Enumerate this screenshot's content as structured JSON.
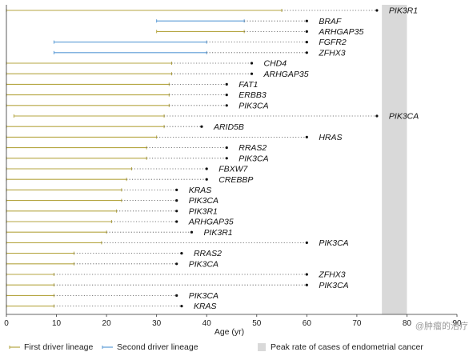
{
  "colors": {
    "first_lineage": "#b5a642",
    "second_lineage": "#5b9bd5",
    "peak_band": "#d9d9d9",
    "dotted": "#555555",
    "text": "#111111"
  },
  "watermark": "@肿瘤的治疗",
  "chart_data": {
    "type": "timeline",
    "xlabel": "Age (yr)",
    "xlim": [
      0,
      90
    ],
    "xticks": [
      0,
      10,
      20,
      30,
      40,
      50,
      60,
      70,
      80,
      90
    ],
    "peak_band": {
      "label": "Peak rate of cases of endometrial cancer",
      "from": 75,
      "to": 80
    },
    "legend": [
      {
        "key": "first",
        "label": "First driver lineage"
      },
      {
        "key": "second",
        "label": "Second driver lineage"
      },
      {
        "key": "peak",
        "label": "Peak rate of cases of endometrial cancer"
      }
    ],
    "rows": [
      {
        "start": 0,
        "end": 55,
        "lineage": "first",
        "driver_age": 74,
        "gene": "PIK3R1"
      },
      {
        "start": 30,
        "end": 47.5,
        "lineage": "second",
        "driver_age": 60,
        "gene": "BRAF"
      },
      {
        "start": 30,
        "end": 47.5,
        "lineage": "first",
        "driver_age": 60,
        "gene": "ARHGAP35"
      },
      {
        "start": 9.5,
        "end": 40,
        "lineage": "second",
        "driver_age": 60,
        "gene": "FGFR2"
      },
      {
        "start": 9.5,
        "end": 40,
        "lineage": "second",
        "driver_age": 60,
        "gene": "ZFHX3"
      },
      {
        "start": 0,
        "end": 33,
        "lineage": "first",
        "driver_age": 49,
        "gene": "CHD4"
      },
      {
        "start": 0,
        "end": 33,
        "lineage": "first",
        "driver_age": 49,
        "gene": "ARHGAP35"
      },
      {
        "start": 0,
        "end": 32.5,
        "lineage": "first",
        "driver_age": 44,
        "gene": "FAT1"
      },
      {
        "start": 0,
        "end": 32.5,
        "lineage": "first",
        "driver_age": 44,
        "gene": "ERBB3"
      },
      {
        "start": 0,
        "end": 32.5,
        "lineage": "first",
        "driver_age": 44,
        "gene": "PIK3CA"
      },
      {
        "start": 1.5,
        "end": 31.5,
        "lineage": "first",
        "driver_age": 74,
        "gene": "PIK3CA"
      },
      {
        "start": 0,
        "end": 31.5,
        "lineage": "first",
        "driver_age": 39,
        "gene": "ARID5B"
      },
      {
        "start": 0,
        "end": 30,
        "lineage": "first",
        "driver_age": 60,
        "gene": "HRAS"
      },
      {
        "start": 0,
        "end": 28,
        "lineage": "first",
        "driver_age": 44,
        "gene": "RRAS2"
      },
      {
        "start": 0,
        "end": 28,
        "lineage": "first",
        "driver_age": 44,
        "gene": "PIK3CA"
      },
      {
        "start": 0,
        "end": 25,
        "lineage": "first",
        "driver_age": 40,
        "gene": "FBXW7"
      },
      {
        "start": 0,
        "end": 24,
        "lineage": "first",
        "driver_age": 40,
        "gene": "CREBBP"
      },
      {
        "start": 0,
        "end": 23,
        "lineage": "first",
        "driver_age": 34,
        "gene": "KRAS"
      },
      {
        "start": 0,
        "end": 23,
        "lineage": "first",
        "driver_age": 34,
        "gene": "PIK3CA"
      },
      {
        "start": 0,
        "end": 22,
        "lineage": "first",
        "driver_age": 34,
        "gene": "PIK3R1"
      },
      {
        "start": 0,
        "end": 21,
        "lineage": "first",
        "driver_age": 34,
        "gene": "ARHGAP35"
      },
      {
        "start": 0,
        "end": 20,
        "lineage": "first",
        "driver_age": 37,
        "gene": "PIK3R1"
      },
      {
        "start": 0,
        "end": 19,
        "lineage": "first",
        "driver_age": 60,
        "gene": "PIK3CA"
      },
      {
        "start": 0,
        "end": 13.5,
        "lineage": "first",
        "driver_age": 35,
        "gene": "RRAS2"
      },
      {
        "start": 0,
        "end": 13.5,
        "lineage": "first",
        "driver_age": 34,
        "gene": "PIK3CA"
      },
      {
        "start": 0,
        "end": 9.5,
        "lineage": "first",
        "driver_age": 60,
        "gene": "ZFHX3"
      },
      {
        "start": 0,
        "end": 9.5,
        "lineage": "first",
        "driver_age": 60,
        "gene": "PIK3CA"
      },
      {
        "start": 0,
        "end": 9.5,
        "lineage": "first",
        "driver_age": 34,
        "gene": "PIK3CA"
      },
      {
        "start": 0,
        "end": 9.5,
        "lineage": "first",
        "driver_age": 35,
        "gene": "KRAS"
      }
    ]
  }
}
